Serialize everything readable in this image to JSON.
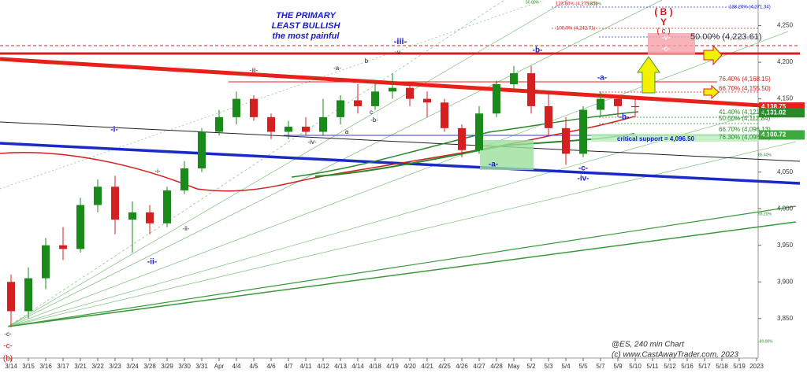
{
  "chart_data": {
    "type": "candlestick",
    "title_lines": [
      "THE PRIMARY",
      "LEAST BULLISH",
      "the most painful"
    ],
    "footer": [
      "@ES, 240 min Chart",
      "(c) www.CastAwayTrader.com, 2023"
    ],
    "categories": [
      "3/14",
      "3/15",
      "3/16",
      "3/17",
      "3/21",
      "3/22",
      "3/23",
      "3/24",
      "3/28",
      "3/29",
      "3/30",
      "3/31",
      "Apr",
      "4/4",
      "4/5",
      "4/6",
      "4/7",
      "4/11",
      "4/12",
      "4/13",
      "4/14",
      "4/18",
      "4/19",
      "4/20",
      "4/21",
      "4/25",
      "4/26",
      "4/27",
      "4/28",
      "May",
      "5/2",
      "5/3",
      "5/4",
      "5/5",
      "5/7",
      "5/9",
      "5/10",
      "5/11",
      "5/12",
      "5/16",
      "5/17",
      "5/18",
      "5/19",
      "2023"
    ],
    "open": [
      3900,
      3860,
      3905,
      3950,
      3945,
      4005,
      4030,
      3985,
      3995,
      3980,
      4025,
      4055,
      4105,
      4125,
      4150,
      4125,
      4105,
      4112,
      4105,
      4125,
      4148,
      4140,
      4160,
      4165,
      4150,
      4145,
      4110,
      4080,
      4130,
      4170,
      4185,
      4140,
      4110,
      4075,
      4135,
      4150,
      4140,
      null,
      null,
      null,
      null,
      null,
      null,
      null
    ],
    "high": [
      3910,
      3920,
      3960,
      3975,
      4015,
      4040,
      4045,
      4010,
      4005,
      4030,
      4065,
      4110,
      4135,
      4160,
      4155,
      4130,
      4120,
      4125,
      4150,
      4155,
      4170,
      4175,
      4185,
      4170,
      4160,
      4150,
      4115,
      4140,
      4175,
      4195,
      4195,
      4160,
      4125,
      4140,
      4160,
      4155,
      4150,
      null,
      null,
      null,
      null,
      null,
      null,
      null
    ],
    "low": [
      3838,
      3850,
      3890,
      3930,
      3940,
      3995,
      3965,
      3940,
      3965,
      3975,
      4020,
      4050,
      4100,
      4115,
      4120,
      4095,
      4095,
      4100,
      4100,
      4115,
      4130,
      4135,
      4150,
      4140,
      4125,
      4105,
      4070,
      4075,
      4125,
      4160,
      4130,
      4100,
      4060,
      4070,
      4125,
      4125,
      4125,
      null,
      null,
      null,
      null,
      null,
      null,
      null
    ],
    "close": [
      3860,
      3905,
      3950,
      3945,
      4005,
      4030,
      3985,
      3995,
      3980,
      4025,
      4055,
      4105,
      4125,
      4150,
      4125,
      4105,
      4112,
      4105,
      4125,
      4148,
      4140,
      4160,
      4165,
      4150,
      4145,
      4110,
      4080,
      4130,
      4170,
      4185,
      4140,
      4110,
      4075,
      4135,
      4150,
      4140,
      4138.75,
      null,
      null,
      null,
      null,
      null,
      null,
      null
    ],
    "up_color": "#1a8a1a",
    "down_color": "#d42020",
    "ylim": [
      3796,
      4285
    ],
    "yticks": [
      {
        "value": 3850,
        "label": "3,850"
      },
      {
        "value": 3900,
        "label": "3,900"
      },
      {
        "value": 3950,
        "label": "3,950"
      },
      {
        "value": 4000,
        "label": "4,000"
      },
      {
        "value": 4050,
        "label": "4,050"
      },
      {
        "value": 4100,
        "label": "4,100"
      },
      {
        "value": 4150,
        "label": "4,150"
      },
      {
        "value": 4200,
        "label": "4,200"
      },
      {
        "value": 4250,
        "label": "4,250"
      }
    ],
    "price_tags": [
      {
        "value": 4138.75,
        "label": "4,138.75",
        "color": "#e8201a"
      },
      {
        "value": 4131.02,
        "label": "4,131.02",
        "color": "#2a8a2a"
      },
      {
        "value": 4100.72,
        "label": "4,100.72",
        "color": "#3caa3c"
      }
    ],
    "annotations": [
      "-iii-",
      "-b-",
      "-a-",
      "-b-",
      "-c-",
      "-iv-",
      "-a-",
      "-i-",
      "-ii-",
      "-c-",
      "(b)",
      "( B )",
      "Y",
      "( c )",
      "-v-",
      "-c-",
      "50.00% (4,223.61)",
      "-v-",
      "-iii-",
      "-a-",
      "b",
      "c",
      "-b-",
      "a",
      "-iv-",
      "-i-",
      "-ii-",
      "-c-",
      "138.20% (4,271.34)",
      "123.60% (4,275.35)",
      "100.0% (4,242.71)",
      "76.40% (4,168.15)",
      "66.70% (4,155.50)",
      "41.40% (4,121.45)",
      "50.00% (4,112.84)",
      "66.70% (4,096.13)",
      "76.30% (4,096.50)",
      "critical support = 4,096.50",
      "85.40%",
      "93.20%",
      "-80.00%",
      "50.00%",
      "66.70%"
    ]
  }
}
